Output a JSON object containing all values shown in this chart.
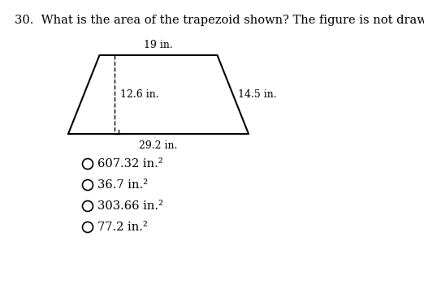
{
  "question_number": "30.  ",
  "question_text": "What is the area of the trapezoid shown? The figure is not drawn to scale.",
  "top_label": "19 in.",
  "bottom_label": "29.2 in.",
  "height_label": "12.6 in.",
  "side_label": "14.5 in.",
  "options": [
    "607.32 in.²",
    "36.7 in.²",
    "303.66 in.²",
    "77.2 in.²"
  ],
  "bg_color": "#ffffff",
  "text_color": "#000000",
  "font_size_question": 10.5,
  "font_size_labels": 9,
  "font_size_options": 10.5
}
